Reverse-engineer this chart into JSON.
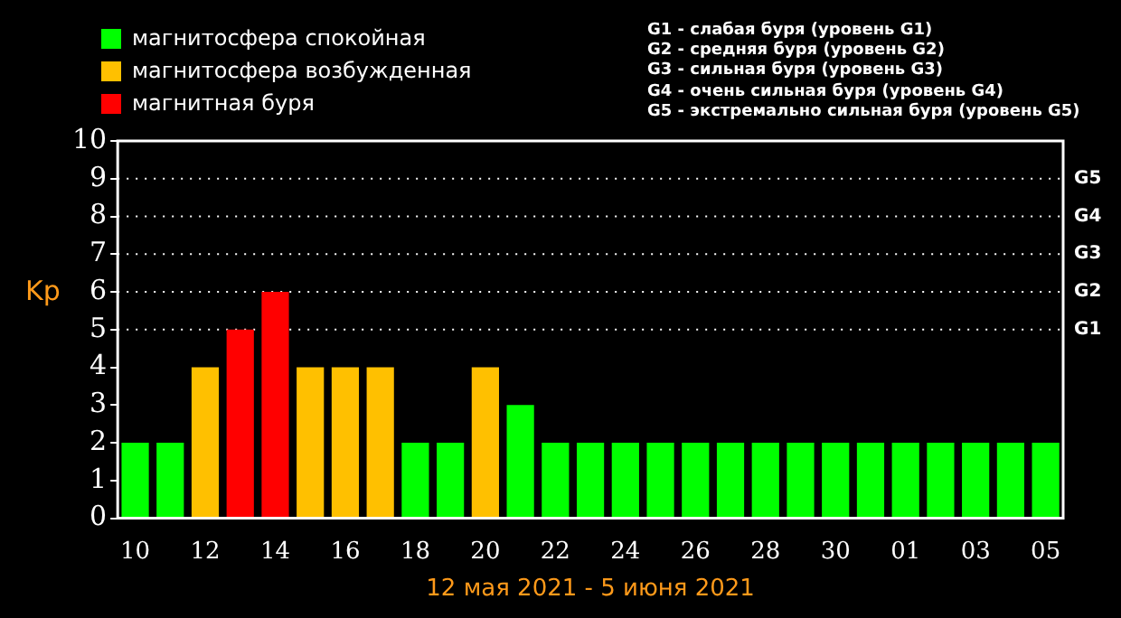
{
  "chart_data": {
    "type": "bar",
    "xlabel": "12 мая 2021 - 5 июня 2021",
    "ylabel": "Kp",
    "categories": [
      "10",
      null,
      "12",
      null,
      "14",
      null,
      "16",
      null,
      "18",
      null,
      "20",
      null,
      "22",
      null,
      "24",
      null,
      "26",
      null,
      "28",
      null,
      "30",
      null,
      "01",
      null,
      "03",
      null,
      "05"
    ],
    "series": [
      {
        "name": "магнитосфера спокойная",
        "color": "#00ff00",
        "values": [
          2,
          2,
          null,
          null,
          null,
          null,
          null,
          null,
          2,
          2,
          null,
          3,
          2,
          2,
          2,
          2,
          2,
          2,
          2,
          2,
          2,
          2,
          2,
          2,
          2,
          2,
          2
        ]
      },
      {
        "name": "магнитосфера возбужденная",
        "color": "#ffc000",
        "values": [
          null,
          null,
          4,
          null,
          null,
          4,
          4,
          4,
          null,
          null,
          4,
          null,
          null,
          null,
          null,
          null,
          null,
          null,
          null,
          null,
          null,
          null,
          null,
          null,
          null,
          null,
          null
        ]
      },
      {
        "name": "магнитная буря",
        "color": "#ff0000",
        "values": [
          null,
          null,
          null,
          5,
          6,
          null,
          null,
          null,
          null,
          null,
          null,
          null,
          null,
          null,
          null,
          null,
          null,
          null,
          null,
          null,
          null,
          null,
          null,
          null,
          null,
          null,
          null
        ]
      }
    ],
    "ylim": [
      0,
      10
    ],
    "yticks": [
      0,
      1,
      2,
      3,
      4,
      5,
      6,
      7,
      8,
      9,
      10
    ],
    "ref_lines": [
      {
        "axis": "y",
        "value": 5,
        "label": "G1",
        "color": "#ffffff",
        "line_style": "dotted"
      },
      {
        "axis": "y",
        "value": 6,
        "label": "G2",
        "color": "#ffffff",
        "line_style": "dotted"
      },
      {
        "axis": "y",
        "value": 7,
        "label": "G3",
        "color": "#ffffff",
        "line_style": "dotted"
      },
      {
        "axis": "y",
        "value": 8,
        "label": "G4",
        "color": "#ffffff",
        "line_style": "dotted"
      },
      {
        "axis": "y",
        "value": 9,
        "label": "G5",
        "color": "#ffffff",
        "line_style": "dotted"
      }
    ],
    "annotations": [
      "G1 - слабая буря (уровень G1)",
      "G2 - средняя буря (уровень G2)",
      "G3 - сильная буря (уровень G3)",
      "G4 - очень сильная буря (уровень G4)",
      "G5 - экстремально сильная буря (уровень G5)"
    ],
    "legend": "top left",
    "grid": false
  }
}
